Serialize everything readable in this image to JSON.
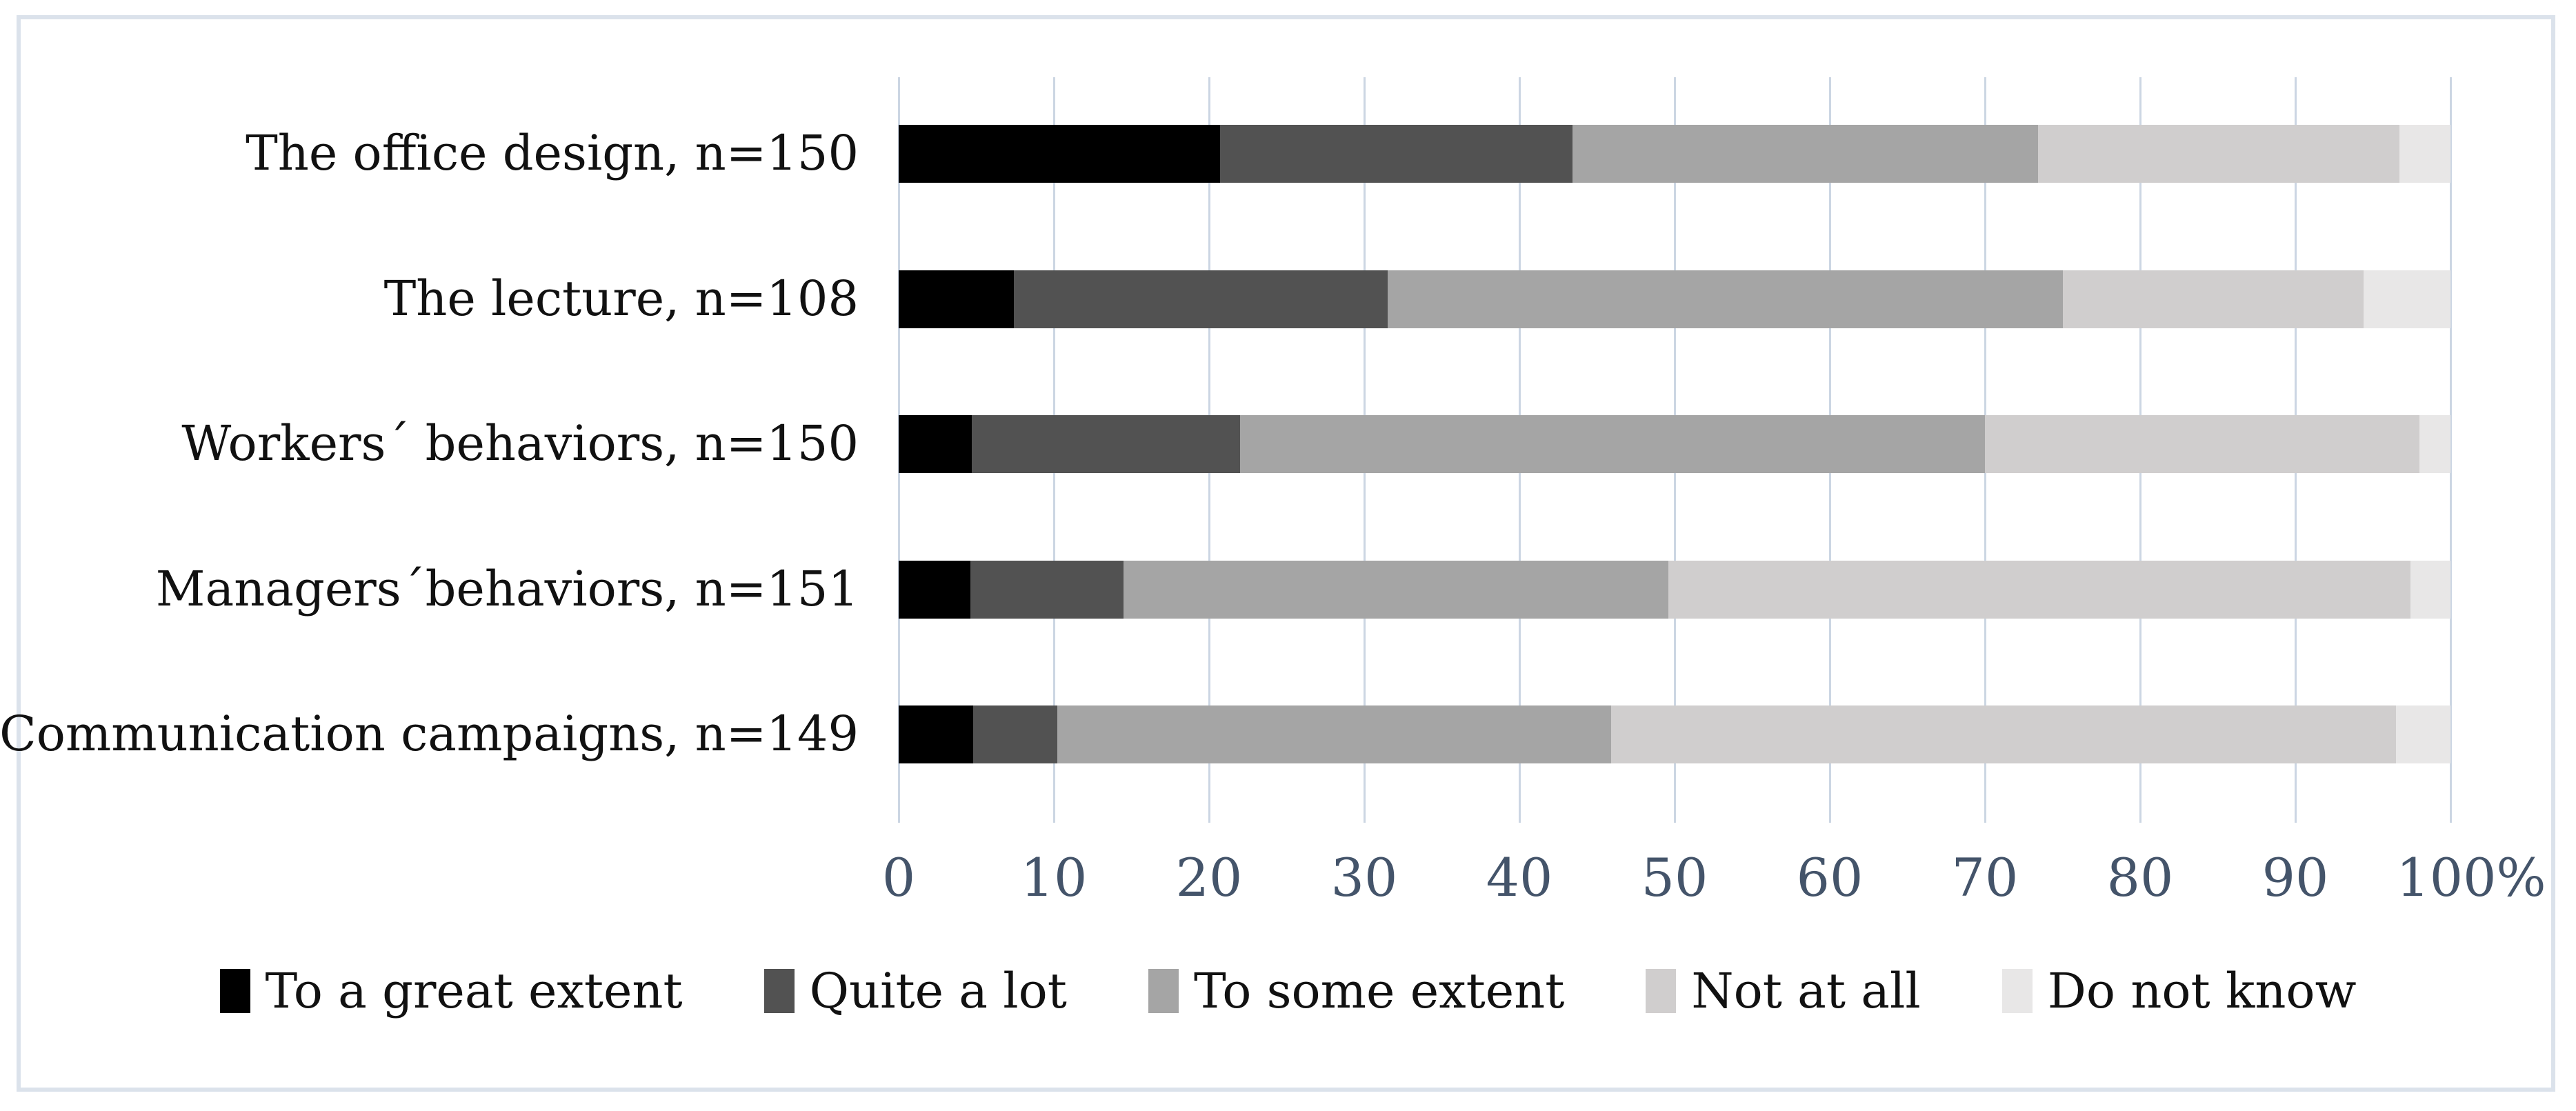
{
  "figure": {
    "background": "#ffffff",
    "border_color": "#dbe2eb"
  },
  "chart_data": {
    "type": "bar",
    "orientation": "horizontal",
    "stacked": true,
    "unit": "percent",
    "title": "",
    "xlabel": "",
    "ylabel": "",
    "xlim": [
      0,
      100
    ],
    "grid": true,
    "gridline_color": "#ccd6e3",
    "tick_label_color": "#44546a",
    "categories": [
      "The office design, n=150",
      "The lecture, n=108",
      "Workers´ behaviors, n=150",
      "Managers´behaviors, n=151",
      "Communication campaigns, n=149"
    ],
    "series": [
      {
        "name": "To a great extent",
        "color": "#000000",
        "values": [
          20.7,
          7.4,
          4.7,
          4.6,
          4.8
        ]
      },
      {
        "name": "Quite a lot",
        "color": "#525252",
        "values": [
          22.7,
          24.1,
          17.3,
          9.9,
          5.4
        ]
      },
      {
        "name": "To some extent",
        "color": "#a5a5a5",
        "values": [
          30.0,
          43.5,
          48.0,
          35.1,
          35.7
        ]
      },
      {
        "name": "Not at all",
        "color": "#d0cece",
        "values": [
          23.3,
          19.4,
          28.0,
          47.8,
          50.6
        ]
      },
      {
        "name": "Do not know",
        "color": "#e8e7e7",
        "values": [
          3.3,
          5.6,
          2.0,
          2.6,
          3.5
        ]
      }
    ],
    "x_axis": {
      "tick_labels": [
        "0",
        "10",
        "20",
        "30",
        "40",
        "50",
        "60",
        "70",
        "80",
        "90",
        "100%"
      ],
      "tick_values": [
        0,
        10,
        20,
        30,
        40,
        50,
        60,
        70,
        80,
        90,
        100
      ]
    },
    "legend": {
      "position": "bottom",
      "entries": [
        "To a great extent",
        "Quite a lot",
        "To some extent",
        "Not at all",
        "Do not know"
      ]
    }
  }
}
